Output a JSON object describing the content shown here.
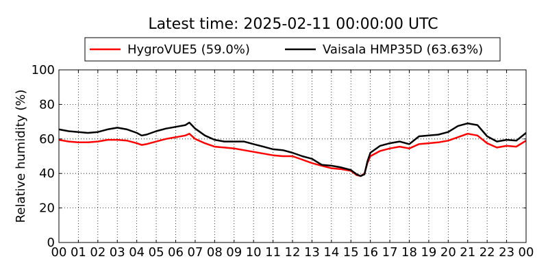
{
  "chart_data": {
    "type": "line",
    "title": "Latest time: 2025-02-11 00:00:00 UTC",
    "ylabel": "Relative humidity (%)",
    "xlabel": "",
    "xlim": [
      0,
      24
    ],
    "ylim": [
      0,
      100
    ],
    "grid": true,
    "legend_position": "top-outside",
    "x_ticks": [
      0,
      1,
      2,
      3,
      4,
      5,
      6,
      7,
      8,
      9,
      10,
      11,
      12,
      13,
      14,
      15,
      16,
      17,
      18,
      19,
      20,
      21,
      22,
      23,
      24
    ],
    "x_tick_labels": [
      "00",
      "01",
      "02",
      "03",
      "04",
      "05",
      "06",
      "07",
      "08",
      "09",
      "10",
      "11",
      "12",
      "13",
      "14",
      "15",
      "16",
      "17",
      "18",
      "19",
      "20",
      "21",
      "22",
      "23",
      "00"
    ],
    "y_ticks": [
      0,
      20,
      40,
      60,
      80,
      100
    ],
    "y_tick_labels": [
      "0",
      "20",
      "40",
      "60",
      "80",
      "100"
    ],
    "x": [
      0,
      0.5,
      1,
      1.5,
      2,
      2.5,
      3,
      3.5,
      4,
      4.25,
      4.5,
      5,
      5.5,
      6,
      6.5,
      6.7,
      7,
      7.5,
      8,
      8.5,
      9,
      9.5,
      10,
      10.5,
      11,
      11.5,
      12,
      12.5,
      13,
      13.5,
      14,
      14.5,
      15,
      15.3,
      15.5,
      15.7,
      15.85,
      16,
      16.5,
      17,
      17.5,
      18,
      18.5,
      19,
      19.5,
      20,
      20.5,
      21,
      21.5,
      22,
      22.5,
      23,
      23.5,
      24
    ],
    "series": [
      {
        "name": "HygroVUE5 (59.0%)",
        "color": "#ff0000",
        "values": [
          59.5,
          58.5,
          58,
          58,
          58.5,
          59.5,
          59.5,
          59,
          57.5,
          56.5,
          57,
          58.5,
          60,
          61,
          62,
          63,
          60,
          57.5,
          55.5,
          55,
          54.5,
          53.5,
          52.5,
          51.5,
          50.5,
          50,
          50,
          48,
          46,
          44.5,
          43,
          42.5,
          41.5,
          39,
          38.5,
          40,
          46,
          50,
          53,
          54.5,
          55.5,
          54.5,
          57,
          57.5,
          58,
          59,
          61,
          63,
          62,
          57.5,
          55,
          56,
          55.5,
          59
        ]
      },
      {
        "name": "Vaisala HMP35D (63.63%)",
        "color": "#000000",
        "values": [
          65.5,
          64.5,
          64,
          63.5,
          64,
          65.5,
          66.5,
          65.5,
          63.5,
          62,
          62.5,
          64.5,
          66,
          67,
          68,
          69.5,
          66,
          62,
          59.5,
          58.5,
          58.5,
          58.5,
          57,
          55.5,
          54,
          53.5,
          52,
          50,
          48.5,
          45,
          44.5,
          43.5,
          42,
          39.5,
          38.5,
          39.5,
          47,
          52,
          56,
          57.5,
          58.5,
          57,
          61.5,
          62,
          62.5,
          64,
          67.5,
          69,
          68,
          61.5,
          58.5,
          59.5,
          59,
          63.5
        ]
      }
    ]
  }
}
